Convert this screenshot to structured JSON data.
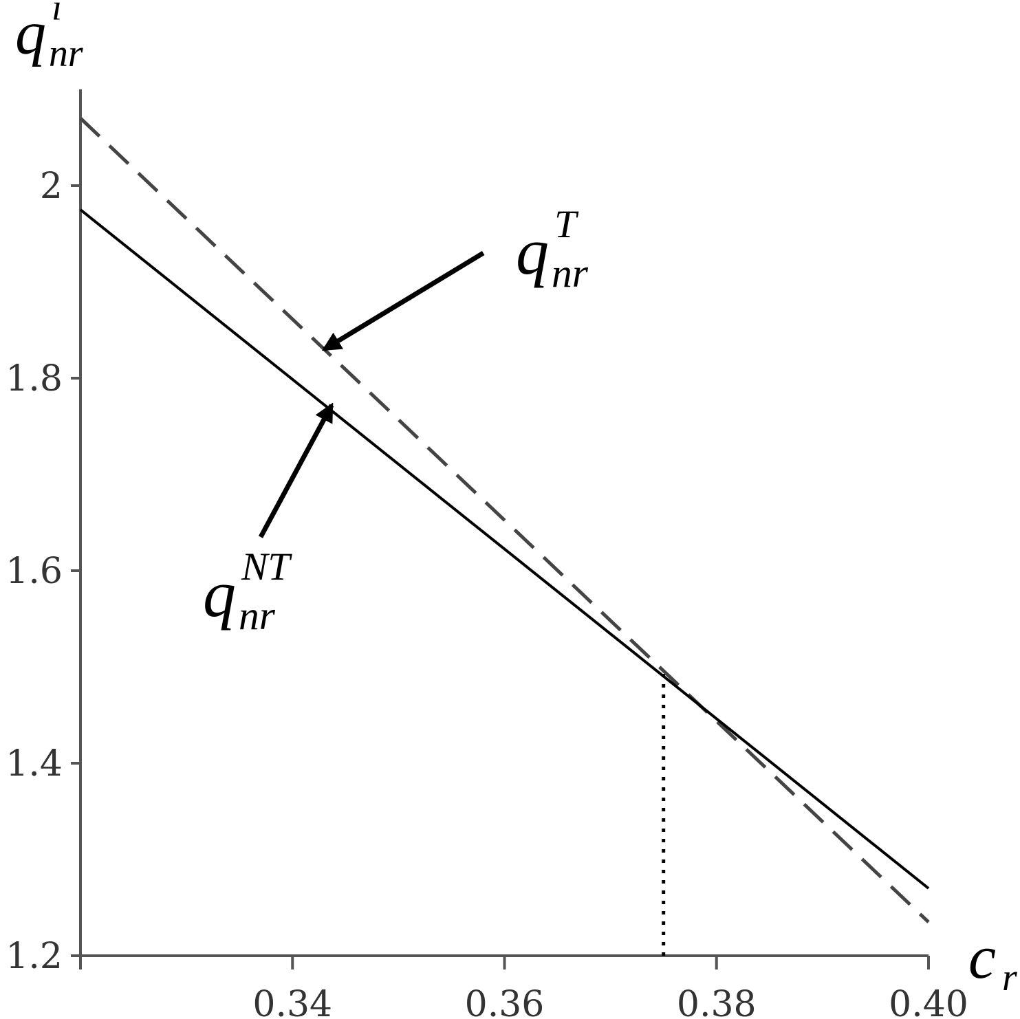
{
  "chart_data": {
    "type": "line",
    "xlabel": {
      "base": "c",
      "sub": "r"
    },
    "ylabel": {
      "base": "q",
      "sub": "nr",
      "sup": "i"
    },
    "xlim": [
      0.32,
      0.4
    ],
    "ylim": [
      1.2,
      2.1
    ],
    "x_ticks": [
      {
        "value": 0.34,
        "label": "0.34"
      },
      {
        "value": 0.36,
        "label": "0.36"
      },
      {
        "value": 0.38,
        "label": "0.38"
      },
      {
        "value": 0.4,
        "label": "0.40"
      }
    ],
    "y_ticks": [
      {
        "value": 1.2,
        "label": "1.2"
      },
      {
        "value": 1.4,
        "label": "1.4"
      },
      {
        "value": 1.6,
        "label": "1.6"
      },
      {
        "value": 1.8,
        "label": "1.8"
      },
      {
        "value": 2.0,
        "label": "2"
      }
    ],
    "series": [
      {
        "key": "T",
        "style": "dashed",
        "color": "#444444",
        "label": {
          "base": "q",
          "sub": "nr",
          "sup": "T"
        },
        "points": [
          [
            0.32,
            2.07
          ],
          [
            0.4,
            1.235
          ]
        ]
      },
      {
        "key": "NT",
        "style": "solid",
        "color": "#000000",
        "label": {
          "base": "q",
          "sub": "nr",
          "sup": "NT"
        },
        "points": [
          [
            0.32,
            1.975
          ],
          [
            0.4,
            1.27
          ]
        ]
      }
    ],
    "reference_line": {
      "style": "dotted",
      "x": 0.375,
      "y_from": 1.2,
      "y_to": 1.495
    },
    "annotations": [
      {
        "series": "T",
        "target": [
          0.343,
          1.83
        ],
        "tail": [
          0.358,
          1.93
        ]
      },
      {
        "series": "NT",
        "target": [
          0.3437,
          1.772
        ],
        "tail": [
          0.337,
          1.635
        ]
      }
    ],
    "grid": false,
    "legend": "none"
  }
}
